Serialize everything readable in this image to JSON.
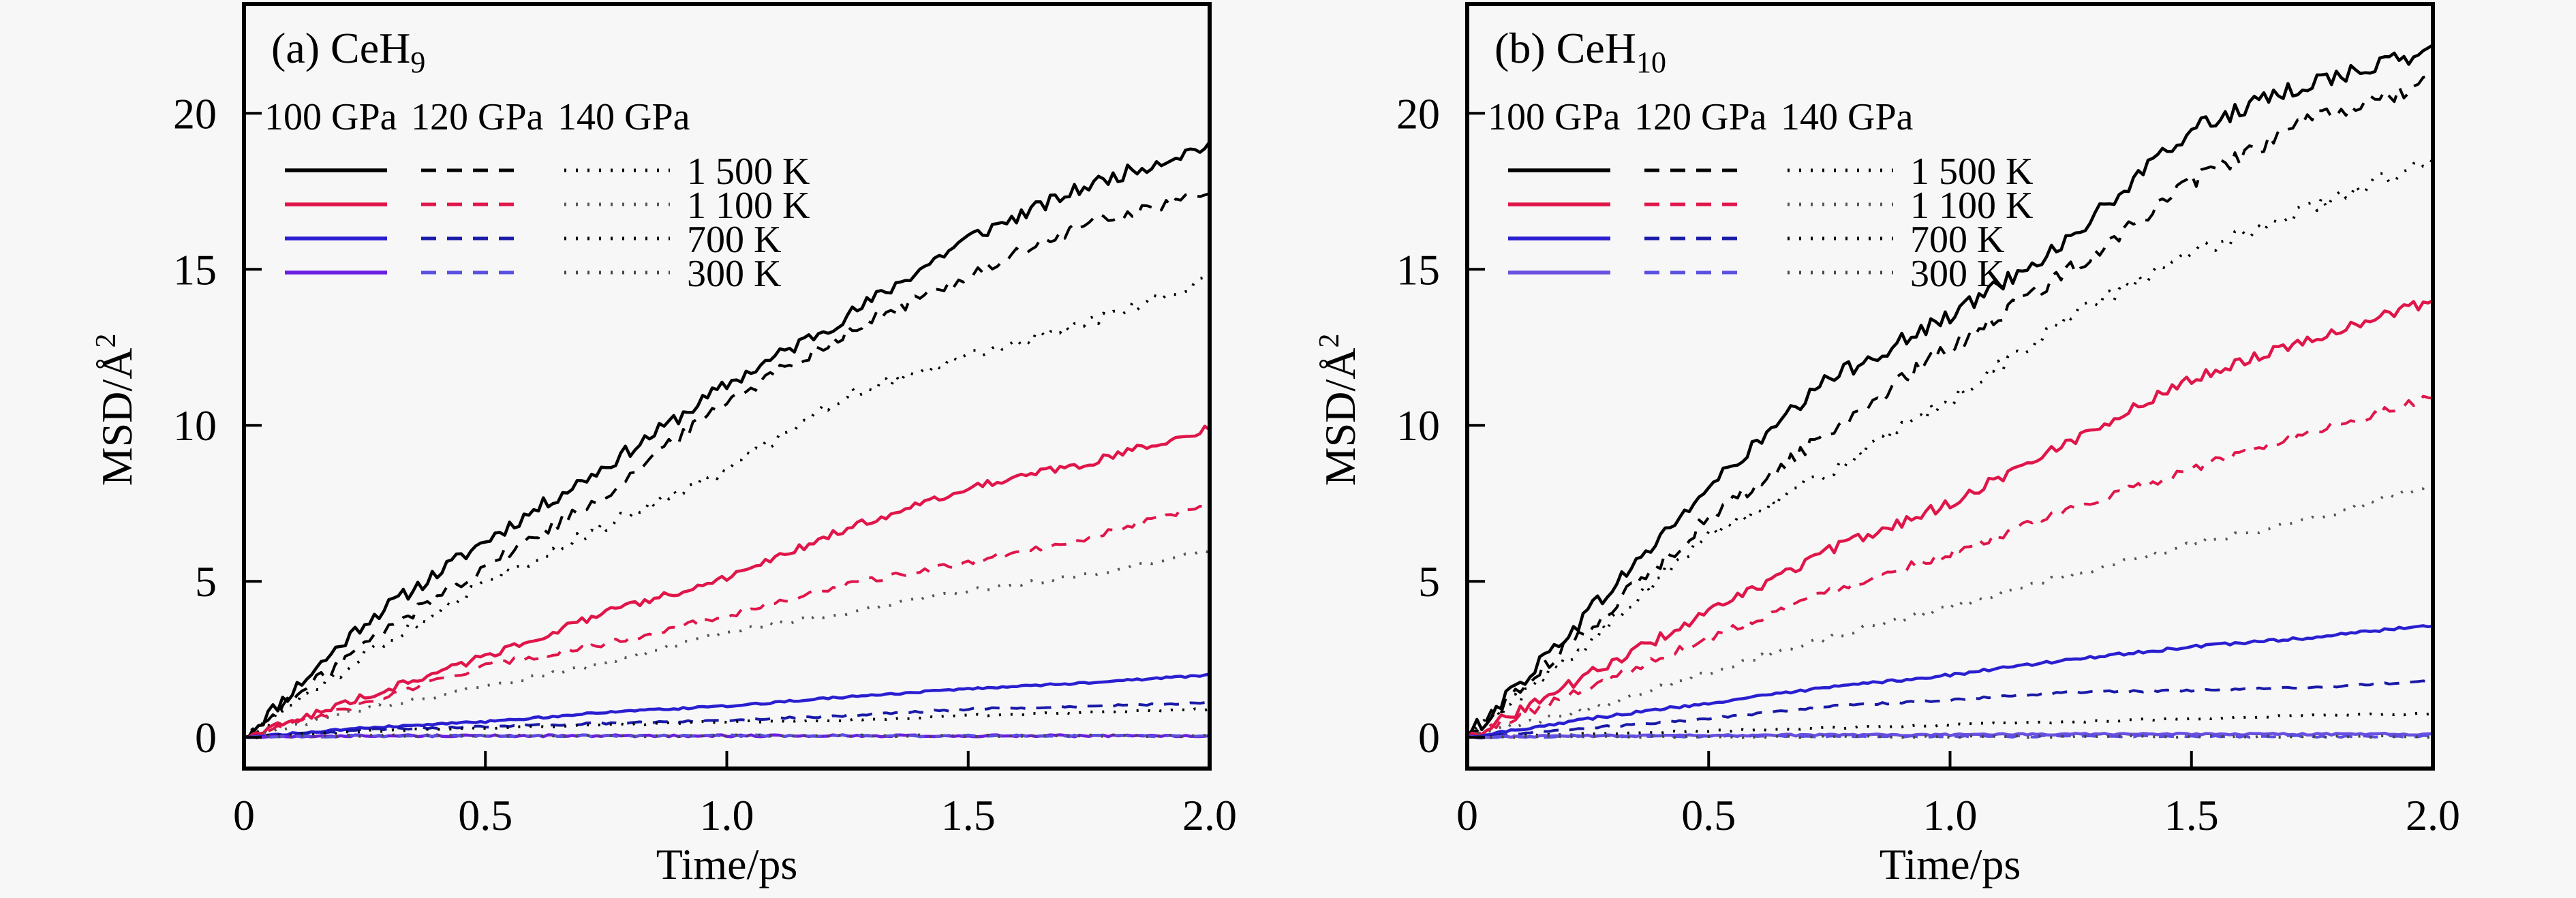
{
  "chart_data": [
    {
      "type": "line",
      "title": "(a) CeH",
      "title_subscript": "9",
      "xlabel": "Time/ps",
      "ylabel": "MSD/Å",
      "ylabel_superscript": "2",
      "xlim": [
        0,
        2.0
      ],
      "ylim": [
        -1,
        23.5
      ],
      "xticks": [
        0,
        0.5,
        1.0,
        1.5,
        2.0
      ],
      "xtick_labels": [
        "0",
        "0.5",
        "1.0",
        "1.5",
        "2.0"
      ],
      "yticks": [
        0,
        5,
        10,
        15,
        20
      ],
      "ytick_labels": [
        "0",
        "5",
        "10",
        "15",
        "20"
      ],
      "grid": false,
      "legend": {
        "placement": "top-left",
        "pressure_headers": [
          "100 GPa",
          "120 GPa",
          "140 GPa"
        ],
        "temperature_labels": [
          "1 500 K",
          "1 100 K",
          "700 K",
          "300 K"
        ]
      },
      "x": [
        0,
        0.25,
        0.5,
        0.75,
        1.0,
        1.25,
        1.5,
        1.75,
        2.0
      ],
      "series": [
        {
          "name": "100 GPa 1 500 K",
          "pressure": "100 GPa",
          "temperature": "1 500 K",
          "style": "solid",
          "color": "#000000",
          "values": [
            0,
            3.7,
            6.3,
            8.7,
            11.3,
            13.5,
            16.0,
            17.7,
            19.0
          ]
        },
        {
          "name": "120 GPa 1 500 K",
          "pressure": "120 GPa",
          "temperature": "1 500 K",
          "style": "dashed",
          "color": "#000000",
          "values": [
            0,
            3.0,
            5.5,
            7.8,
            10.8,
            13.0,
            14.8,
            16.5,
            17.4
          ]
        },
        {
          "name": "140 GPa 1 500 K",
          "pressure": "140 GPa",
          "temperature": "1 500 K",
          "style": "dotted",
          "color": "#000000",
          "values": [
            0,
            2.6,
            5.0,
            6.8,
            8.6,
            11.0,
            12.2,
            13.3,
            14.7
          ]
        },
        {
          "name": "100 GPa 1 100 K",
          "pressure": "100 GPa",
          "temperature": "1 100 K",
          "style": "solid",
          "color": "#e0164a",
          "values": [
            0,
            1.3,
            2.6,
            4.0,
            5.1,
            6.7,
            8.0,
            8.8,
            9.9
          ]
        },
        {
          "name": "120 GPa 1 100 K",
          "pressure": "120 GPa",
          "temperature": "1 100 K",
          "style": "dashed",
          "color": "#e0164a",
          "values": [
            0,
            1.1,
            2.3,
            3.0,
            3.9,
            4.9,
            5.6,
            6.4,
            7.5
          ]
        },
        {
          "name": "140 GPa 1 100 K",
          "pressure": "140 GPa",
          "temperature": "1 100 K",
          "style": "dotted",
          "color": "#555555",
          "values": [
            0,
            0.9,
            1.6,
            2.4,
            3.4,
            4.0,
            4.7,
            5.2,
            6.0
          ]
        },
        {
          "name": "100 GPa 700 K",
          "pressure": "100 GPa",
          "temperature": "700 K",
          "style": "solid",
          "color": "#2a1fd0",
          "values": [
            0,
            0.3,
            0.5,
            0.8,
            1.0,
            1.3,
            1.55,
            1.75,
            2.0
          ]
        },
        {
          "name": "120 GPa 700 K",
          "pressure": "120 GPa",
          "temperature": "700 K",
          "style": "dashed",
          "color": "#1a1aa8",
          "values": [
            0,
            0.25,
            0.35,
            0.45,
            0.55,
            0.7,
            0.9,
            1.0,
            1.1
          ]
        },
        {
          "name": "140 GPa 700 K",
          "pressure": "140 GPa",
          "temperature": "700 K",
          "style": "dotted",
          "color": "#000000",
          "values": [
            0,
            0.2,
            0.3,
            0.4,
            0.5,
            0.55,
            0.7,
            0.8,
            0.9
          ]
        },
        {
          "name": "100 GPa 300 K",
          "pressure": "100 GPa",
          "temperature": "300 K",
          "style": "solid",
          "color": "#6a1fe0",
          "values": [
            0,
            0.05,
            0.05,
            0.05,
            0.05,
            0.05,
            0.05,
            0.05,
            0.05
          ]
        },
        {
          "name": "120 GPa 300 K",
          "pressure": "120 GPa",
          "temperature": "300 K",
          "style": "dashed",
          "color": "#5a4fe0",
          "values": [
            0,
            0.05,
            0.05,
            0.05,
            0.05,
            0.05,
            0.05,
            0.05,
            0.05
          ]
        },
        {
          "name": "140 GPa 300 K",
          "pressure": "140 GPa",
          "temperature": "300 K",
          "style": "dotted",
          "color": "#444444",
          "values": [
            0,
            0.05,
            0.05,
            0.05,
            0.05,
            0.05,
            0.05,
            0.05,
            0.05
          ]
        }
      ]
    },
    {
      "type": "line",
      "title": "(b) CeH",
      "title_subscript": "10",
      "xlabel": "Time/ps",
      "ylabel": "MSD/Å",
      "ylabel_superscript": "2",
      "xlim": [
        0,
        2.0
      ],
      "ylim": [
        -1,
        23.5
      ],
      "xticks": [
        0,
        0.5,
        1.0,
        1.5,
        2.0
      ],
      "xtick_labels": [
        "0",
        "0.5",
        "1.0",
        "1.5",
        "2.0"
      ],
      "yticks": [
        0,
        5,
        10,
        15,
        20
      ],
      "ytick_labels": [
        "0",
        "5",
        "10",
        "15",
        "20"
      ],
      "grid": false,
      "legend": {
        "placement": "top-left",
        "pressure_headers": [
          "100 GPa",
          "120 GPa",
          "140 GPa"
        ],
        "temperature_labels": [
          "1 500 K",
          "1 100 K",
          "700 K",
          "300 K"
        ]
      },
      "x": [
        0,
        0.25,
        0.5,
        0.75,
        1.0,
        1.25,
        1.5,
        1.75,
        2.0
      ],
      "series": [
        {
          "name": "100 GPa 1 500 K",
          "pressure": "100 GPa",
          "temperature": "1 500 K",
          "style": "solid",
          "color": "#000000",
          "values": [
            0,
            4.0,
            8.0,
            11.5,
            13.5,
            16.0,
            19.5,
            21.0,
            22.0
          ]
        },
        {
          "name": "120 GPa 1 500 K",
          "pressure": "120 GPa",
          "temperature": "1 500 K",
          "style": "dashed",
          "color": "#000000",
          "values": [
            0,
            3.5,
            7.0,
            9.8,
            12.5,
            15.0,
            17.8,
            19.8,
            21.0
          ]
        },
        {
          "name": "140 GPa 1 500 K",
          "pressure": "140 GPa",
          "temperature": "1 500 K",
          "style": "dotted",
          "color": "#000000",
          "values": [
            0,
            3.0,
            6.5,
            8.5,
            10.8,
            13.5,
            15.5,
            17.0,
            18.5
          ]
        },
        {
          "name": "100 GPa 1 100 K",
          "pressure": "100 GPa",
          "temperature": "1 100 K",
          "style": "solid",
          "color": "#e0164a",
          "values": [
            0,
            2.0,
            4.0,
            6.0,
            7.5,
            9.5,
            11.5,
            12.8,
            14.0
          ]
        },
        {
          "name": "120 GPa 1 100 K",
          "pressure": "120 GPa",
          "temperature": "1 100 K",
          "style": "dashed",
          "color": "#e0164a",
          "values": [
            0,
            1.6,
            3.2,
            4.7,
            5.9,
            7.3,
            8.6,
            9.8,
            10.9
          ]
        },
        {
          "name": "140 GPa 1 100 K",
          "pressure": "140 GPa",
          "temperature": "1 100 K",
          "style": "dotted",
          "color": "#555555",
          "values": [
            0,
            0.9,
            2.1,
            3.2,
            4.2,
            5.2,
            6.2,
            7.0,
            8.1
          ]
        },
        {
          "name": "100 GPa 700 K",
          "pressure": "100 GPa",
          "temperature": "700 K",
          "style": "solid",
          "color": "#2a1fd0",
          "values": [
            0,
            0.6,
            1.1,
            1.6,
            2.0,
            2.5,
            2.9,
            3.2,
            3.6
          ]
        },
        {
          "name": "120 GPa 700 K",
          "pressure": "120 GPa",
          "temperature": "700 K",
          "style": "dashed",
          "color": "#1a1aa8",
          "values": [
            0,
            0.3,
            0.6,
            1.0,
            1.2,
            1.45,
            1.5,
            1.6,
            1.8
          ]
        },
        {
          "name": "140 GPa 700 K",
          "pressure": "140 GPa",
          "temperature": "700 K",
          "style": "dotted",
          "color": "#000000",
          "values": [
            0,
            0.1,
            0.2,
            0.3,
            0.4,
            0.5,
            0.6,
            0.7,
            0.75
          ]
        },
        {
          "name": "100 GPa 300 K",
          "pressure": "100 GPa",
          "temperature": "300 K",
          "style": "solid",
          "color": "#6a4fe0",
          "values": [
            0,
            0.05,
            0.05,
            0.08,
            0.08,
            0.1,
            0.1,
            0.1,
            0.1
          ]
        },
        {
          "name": "120 GPa 300 K",
          "pressure": "120 GPa",
          "temperature": "300 K",
          "style": "dashed",
          "color": "#5a4fe0",
          "values": [
            0,
            0.03,
            0.03,
            0.03,
            0.03,
            0.03,
            0.03,
            0.03,
            0.03
          ]
        },
        {
          "name": "140 GPa 300 K",
          "pressure": "140 GPa",
          "temperature": "300 K",
          "style": "dotted",
          "color": "#444444",
          "values": [
            0,
            0.02,
            0.02,
            0.02,
            0.02,
            0.02,
            0.02,
            0.02,
            0.02
          ]
        }
      ]
    }
  ]
}
